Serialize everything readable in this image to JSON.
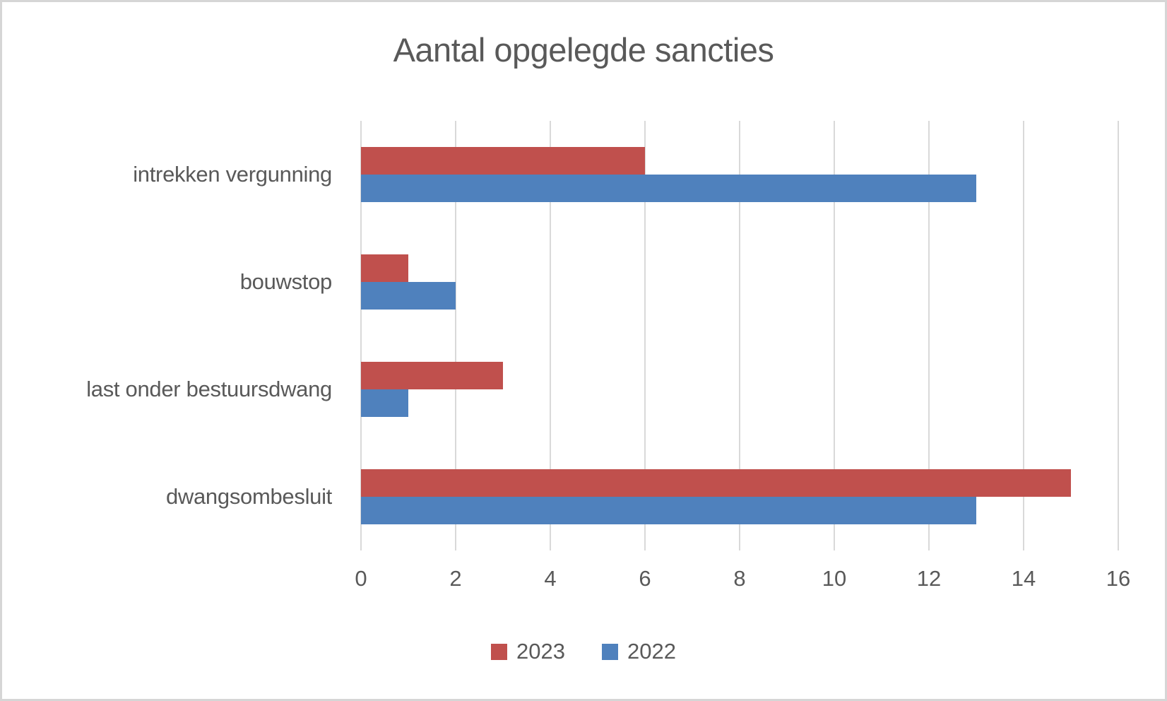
{
  "chart_data": {
    "type": "bar",
    "orientation": "horizontal",
    "title": "Aantal opgelegde sancties",
    "categories": [
      "intrekken vergunning",
      "bouwstop",
      "last onder bestuursdwang",
      "dwangsombesluit"
    ],
    "series": [
      {
        "name": "2023",
        "color": "#C0504D",
        "values": [
          6,
          1,
          3,
          15
        ]
      },
      {
        "name": "2022",
        "color": "#4F81BD",
        "values": [
          13,
          2,
          1,
          13
        ]
      }
    ],
    "x_ticks": [
      0,
      2,
      4,
      6,
      8,
      10,
      12,
      14,
      16
    ],
    "xlim": [
      0,
      16
    ],
    "grid": true,
    "legend_position": "bottom"
  },
  "colors": {
    "text": "#595959",
    "gridline": "#D9D9D9",
    "background": "#FFFFFF",
    "frame_border": "#D6D6D6"
  }
}
